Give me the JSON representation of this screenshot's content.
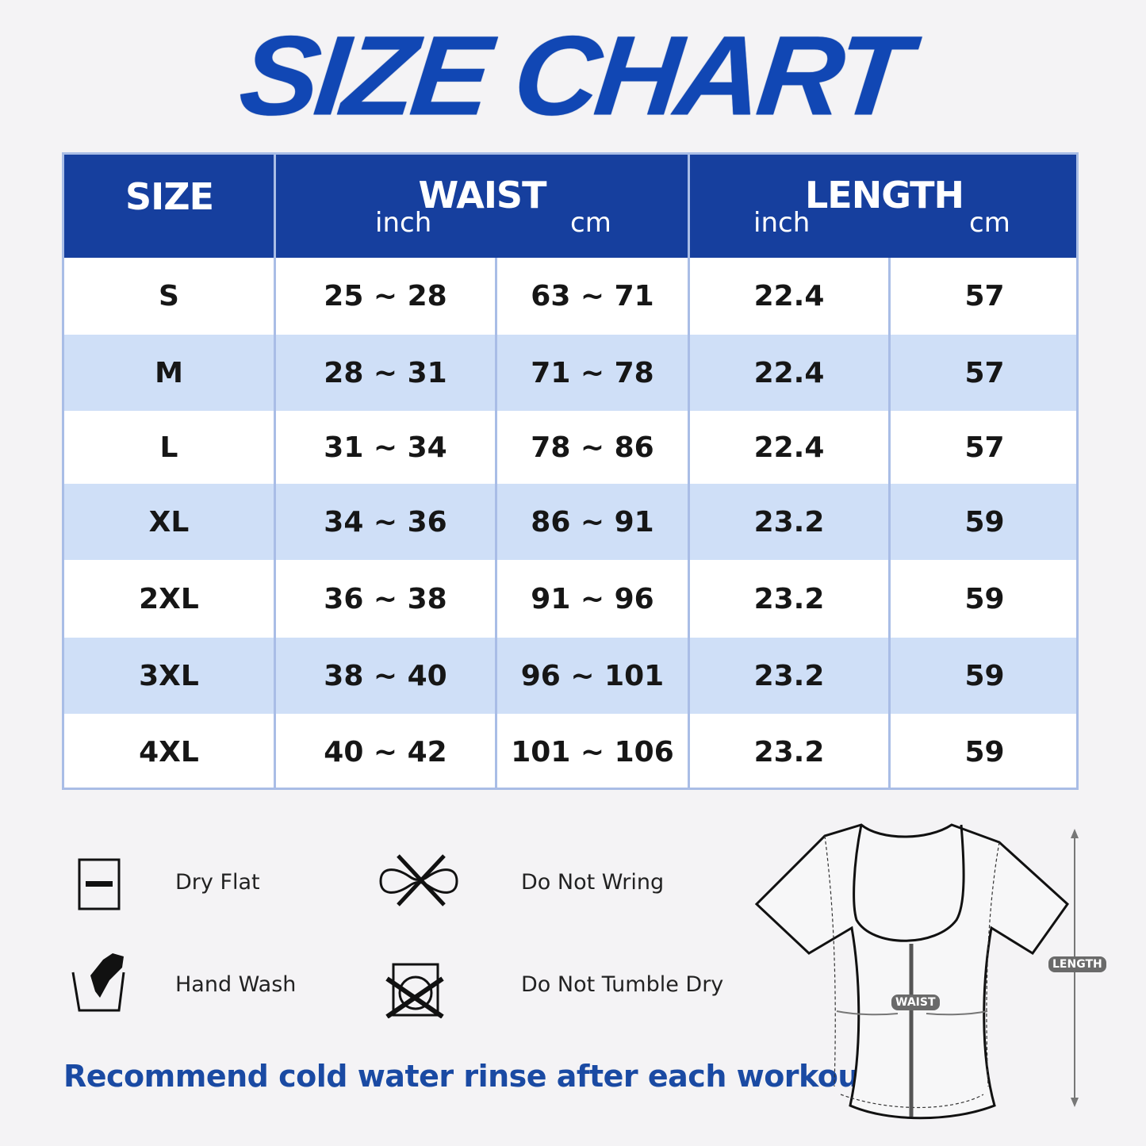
{
  "title": "SIZE CHART",
  "table": {
    "headers": {
      "size": "SIZE",
      "waist": "WAIST",
      "length": "LENGTH",
      "inch": "inch",
      "cm": "cm"
    },
    "rows": [
      {
        "size": "S",
        "waist_inch": "25 ~ 28",
        "waist_cm": "63 ~ 71",
        "length_inch": "22.4",
        "length_cm": "57"
      },
      {
        "size": "M",
        "waist_inch": "28 ~ 31",
        "waist_cm": "71 ~ 78",
        "length_inch": "22.4",
        "length_cm": "57"
      },
      {
        "size": "L",
        "waist_inch": "31 ~ 34",
        "waist_cm": "78 ~ 86",
        "length_inch": "22.4",
        "length_cm": "57"
      },
      {
        "size": "XL",
        "waist_inch": "34 ~ 36",
        "waist_cm": "86 ~ 91",
        "length_inch": "23.2",
        "length_cm": "59"
      },
      {
        "size": "2XL",
        "waist_inch": "36 ~ 38",
        "waist_cm": "91 ~ 96",
        "length_inch": "23.2",
        "length_cm": "59"
      },
      {
        "size": "3XL",
        "waist_inch": "38 ~ 40",
        "waist_cm": "96 ~ 101",
        "length_inch": "23.2",
        "length_cm": "59"
      },
      {
        "size": "4XL",
        "waist_inch": "40 ~ 42",
        "waist_cm": "101 ~ 106",
        "length_inch": "23.2",
        "length_cm": "59"
      }
    ]
  },
  "care": [
    {
      "icon": "dry-flat-icon",
      "label": "Dry Flat"
    },
    {
      "icon": "do-not-wring-icon",
      "label": "Do Not Wring"
    },
    {
      "icon": "hand-wash-icon",
      "label": "Hand Wash"
    },
    {
      "icon": "do-not-tumble-dry-icon",
      "label": "Do Not Tumble Dry"
    }
  ],
  "note": "Recommend cold water rinse after each workout.",
  "diagram": {
    "waist_label": "WAIST",
    "length_label": "LENGTH"
  },
  "colors": {
    "brand_blue": "#163f9e",
    "row_alt": "#cfdff7",
    "border": "#a9bde6"
  }
}
